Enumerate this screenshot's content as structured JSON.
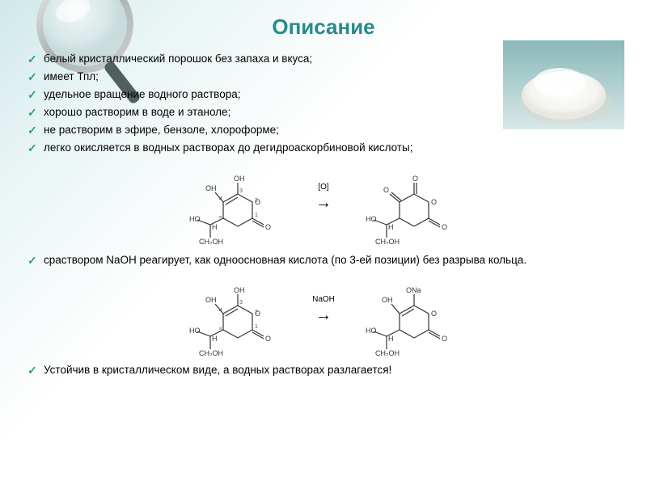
{
  "title": "Описание",
  "title_color": "#2a8a8a",
  "bullet_color": "#2a9a9a",
  "text_color": "#333333",
  "bullets_top": [
    "белый кристаллический порошок без запаха и вкуса;",
    "имеет Тпл;",
    "удельное вращение водного раствора;",
    "хорошо растворим в воде и этаноле;",
    "не растворим в эфире, бензоле, хлороформе;",
    "легко окисляется в водных растворах до дегидроаскорбиновой кислоты;"
  ],
  "reaction1": {
    "arrow_label": "[O]",
    "left": {
      "oh1": "OH",
      "oh2": "OH",
      "pos1": "1",
      "pos2": "2",
      "pos3": "3",
      "pos4": "4",
      "pos5": "5",
      "o_ring": "O",
      "o_double": "O",
      "h": "H",
      "ho": "HO",
      "ch2oh": "CH₂OH"
    },
    "right": {
      "o1": "O",
      "o2": "O",
      "o_ring": "O",
      "o_double": "O",
      "h": "H",
      "ho": "HO",
      "ch2oh": "CH₂OH"
    }
  },
  "bullets_mid": [
    "сраствором NaOH реагирует, как одноосновная кислота (по 3-ей позиции) без разрыва кольца."
  ],
  "reaction2": {
    "arrow_label": "NaOH",
    "left": {
      "oh1": "OH",
      "oh2": "OH",
      "pos1": "1",
      "pos2": "2",
      "pos3": "3",
      "pos4": "4",
      "pos5": "5",
      "o_ring": "O",
      "o_double": "O",
      "h": "H",
      "ho": "HO",
      "ch2oh": "CH₂OH"
    },
    "right": {
      "ona": "ONa",
      "oh2": "OH",
      "o_ring": "O",
      "o_double": "O",
      "h": "H",
      "ho": "HO",
      "ch2oh": "CH₂OH"
    }
  },
  "bottom_note": "Устойчив в кристаллическом виде, а водных растворах разлагается!",
  "powder": {
    "bg_gradient_top": "#8ab8b8",
    "bg_gradient_bottom": "#d8e8e8",
    "powder_color": "#f8f8f6"
  },
  "magnifier": {
    "rim_color": "#c0c8c8",
    "glass_color": "#e8f0f0",
    "handle_color": "#607070"
  },
  "diagram_style": {
    "stroke": "#333333",
    "stroke_width": 1.2,
    "font_size": 9,
    "label_font_size": 7
  }
}
